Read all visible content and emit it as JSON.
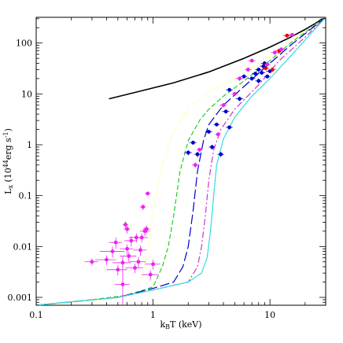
{
  "chart_data": {
    "type": "scatter",
    "title": "",
    "xlabel": "k_BT (keV)",
    "ylabel": "L_x (10^44 erg s^-1)",
    "xscale": "log",
    "yscale": "log",
    "xlim": [
      0.1,
      30
    ],
    "ylim": [
      0.0007,
      320
    ],
    "xticks": [
      {
        "value": 0.1,
        "label": "0.1"
      },
      {
        "value": 1,
        "label": "1"
      },
      {
        "value": 10,
        "label": "10"
      }
    ],
    "yticks": [
      {
        "value": 0.001,
        "label": "0.001"
      },
      {
        "value": 0.01,
        "label": "0.01"
      },
      {
        "value": 0.1,
        "label": "0.1"
      },
      {
        "value": 1,
        "label": "1"
      },
      {
        "value": 10,
        "label": "10"
      },
      {
        "value": 100,
        "label": "100"
      }
    ],
    "grid": false,
    "legend": "none",
    "curves": [
      {
        "style": "solid",
        "color": "#000000",
        "points": [
          [
            0.42,
            8.0
          ],
          [
            0.8,
            11.5
          ],
          [
            1.5,
            16.5
          ],
          [
            3,
            27
          ],
          [
            6,
            50
          ],
          [
            10,
            83
          ],
          [
            15,
            130
          ],
          [
            20,
            185
          ],
          [
            25,
            250
          ],
          [
            28,
            300
          ]
        ]
      },
      {
        "style": "dotted",
        "color": "#ffff66",
        "points": [
          [
            0.1,
            0.0007
          ],
          [
            0.2,
            0.0008
          ],
          [
            0.4,
            0.0009
          ],
          [
            0.6,
            0.0011
          ],
          [
            0.8,
            0.0025
          ],
          [
            0.9,
            0.008
          ],
          [
            1.0,
            0.05
          ],
          [
            1.2,
            0.4
          ],
          [
            1.5,
            1.8
          ],
          [
            2,
            5
          ],
          [
            3,
            11
          ],
          [
            5,
            20
          ],
          [
            8,
            40
          ],
          [
            15,
            110
          ],
          [
            30,
            320
          ]
        ]
      },
      {
        "style": "dashed",
        "color": "#22cc22",
        "points": [
          [
            0.1,
            0.0007
          ],
          [
            0.3,
            0.0009
          ],
          [
            0.6,
            0.0011
          ],
          [
            1.0,
            0.0016
          ],
          [
            1.2,
            0.004
          ],
          [
            1.35,
            0.01
          ],
          [
            1.5,
            0.04
          ],
          [
            1.7,
            0.3
          ],
          [
            2,
            1.2
          ],
          [
            2.5,
            3
          ],
          [
            3,
            5
          ],
          [
            4,
            9
          ],
          [
            6,
            18
          ],
          [
            10,
            45
          ],
          [
            15,
            100
          ],
          [
            30,
            320
          ]
        ]
      },
      {
        "style": "longdash",
        "color": "#0000cc",
        "points": [
          [
            0.1,
            0.0007
          ],
          [
            0.5,
            0.001
          ],
          [
            1.0,
            0.0015
          ],
          [
            1.5,
            0.002
          ],
          [
            1.8,
            0.004
          ],
          [
            2,
            0.01
          ],
          [
            2.2,
            0.05
          ],
          [
            2.4,
            0.3
          ],
          [
            2.7,
            1.2
          ],
          [
            3,
            2.5
          ],
          [
            4,
            6
          ],
          [
            6,
            14
          ],
          [
            10,
            40
          ],
          [
            15,
            90
          ],
          [
            30,
            320
          ]
        ]
      },
      {
        "style": "dashdot",
        "color": "#cc33cc",
        "points": [
          [
            0.1,
            0.0007
          ],
          [
            0.5,
            0.001
          ],
          [
            1.0,
            0.0014
          ],
          [
            2.0,
            0.002
          ],
          [
            2.4,
            0.004
          ],
          [
            2.6,
            0.01
          ],
          [
            2.8,
            0.04
          ],
          [
            3,
            0.2
          ],
          [
            3.3,
            0.8
          ],
          [
            3.8,
            2
          ],
          [
            5,
            5
          ],
          [
            8,
            15
          ],
          [
            12,
            45
          ],
          [
            20,
            130
          ],
          [
            30,
            320
          ]
        ]
      },
      {
        "style": "solid",
        "color": "#33dddd",
        "points": [
          [
            0.1,
            0.0007
          ],
          [
            0.5,
            0.001
          ],
          [
            1.0,
            0.0014
          ],
          [
            2.0,
            0.002
          ],
          [
            2.6,
            0.003
          ],
          [
            2.9,
            0.006
          ],
          [
            3.1,
            0.02
          ],
          [
            3.3,
            0.1
          ],
          [
            3.5,
            0.4
          ],
          [
            4,
            1.3
          ],
          [
            5,
            3.5
          ],
          [
            7,
            9
          ],
          [
            10,
            20
          ],
          [
            15,
            55
          ],
          [
            30,
            320
          ]
        ]
      }
    ],
    "points": [
      {
        "x": 0.3,
        "y": 0.005,
        "color": "#ee22ee",
        "xerr": [
          0.04,
          0.04
        ],
        "yerr": [
          0.0008,
          0.0008
        ]
      },
      {
        "x": 0.4,
        "y": 0.0055,
        "color": "#ee22ee",
        "xerr": [
          0.08,
          0.08
        ],
        "yerr": [
          0.0012,
          0.0012
        ]
      },
      {
        "x": 0.45,
        "y": 0.008,
        "color": "#ee22ee",
        "xerr": [
          0.1,
          0.12
        ],
        "yerr": [
          0.002,
          0.002
        ]
      },
      {
        "x": 0.48,
        "y": 0.012,
        "color": "#ee22ee",
        "xerr": [
          0.06,
          0.06
        ],
        "yerr": [
          0.003,
          0.003
        ]
      },
      {
        "x": 0.5,
        "y": 0.0035,
        "color": "#ee22ee",
        "xerr": [
          0.1,
          0.1
        ],
        "yerr": [
          0.0008,
          0.0008
        ]
      },
      {
        "x": 0.55,
        "y": 0.0018,
        "color": "#ee22ee",
        "xerr": [
          0.08,
          0.08
        ],
        "yerr": [
          0.0012,
          0.0045
        ]
      },
      {
        "x": 0.55,
        "y": 0.0048,
        "color": "#ee22ee",
        "xerr": [
          0.1,
          0.1
        ],
        "yerr": [
          0.001,
          0.001
        ]
      },
      {
        "x": 0.58,
        "y": 0.027,
        "color": "#ee22ee",
        "xerr": [
          0.03,
          0.03
        ],
        "yerr": [
          0.004,
          0.004
        ]
      },
      {
        "x": 0.6,
        "y": 0.022,
        "color": "#ee22ee",
        "xerr": [
          0.04,
          0.04
        ],
        "yerr": [
          0.004,
          0.004
        ]
      },
      {
        "x": 0.6,
        "y": 0.009,
        "color": "#ee22ee",
        "xerr": [
          0.08,
          0.08
        ],
        "yerr": [
          0.002,
          0.002
        ]
      },
      {
        "x": 0.62,
        "y": 0.0065,
        "color": "#ee22ee",
        "xerr": [
          0.1,
          0.1
        ],
        "yerr": [
          0.0015,
          0.0015
        ]
      },
      {
        "x": 0.65,
        "y": 0.013,
        "color": "#ee22ee",
        "xerr": [
          0.08,
          0.08
        ],
        "yerr": [
          0.003,
          0.003
        ]
      },
      {
        "x": 0.7,
        "y": 0.0038,
        "color": "#ee22ee",
        "xerr": [
          0.12,
          0.12
        ],
        "yerr": [
          0.0008,
          0.0008
        ]
      },
      {
        "x": 0.72,
        "y": 0.015,
        "color": "#ee22ee",
        "xerr": [
          0.1,
          0.1
        ],
        "yerr": [
          0.003,
          0.003
        ]
      },
      {
        "x": 0.75,
        "y": 0.005,
        "color": "#ee22ee",
        "xerr": [
          0.12,
          0.12
        ],
        "yerr": [
          0.0012,
          0.0012
        ]
      },
      {
        "x": 0.78,
        "y": 0.0085,
        "color": "#ee22ee",
        "xerr": [
          0.1,
          0.1
        ],
        "yerr": [
          0.002,
          0.002
        ]
      },
      {
        "x": 0.8,
        "y": 0.015,
        "color": "#ee22ee",
        "xerr": [
          0.1,
          0.1
        ],
        "yerr": [
          0.003,
          0.003
        ]
      },
      {
        "x": 0.82,
        "y": 0.06,
        "color": "#ee22ee",
        "xerr": [
          0.05,
          0.05
        ],
        "yerr": [
          0.008,
          0.008
        ]
      },
      {
        "x": 0.85,
        "y": 0.02,
        "color": "#ee22ee",
        "xerr": [
          0.08,
          0.08
        ],
        "yerr": [
          0.004,
          0.004
        ]
      },
      {
        "x": 0.88,
        "y": 0.022,
        "color": "#ee22ee",
        "xerr": [
          0.06,
          0.06
        ],
        "yerr": [
          0.004,
          0.004
        ]
      },
      {
        "x": 0.9,
        "y": 0.11,
        "color": "#ee22ee",
        "xerr": [
          0.05,
          0.05
        ],
        "yerr": [
          0.01,
          0.01
        ]
      },
      {
        "x": 0.95,
        "y": 0.0028,
        "color": "#ee22ee",
        "xerr": [
          0.15,
          0.15
        ],
        "yerr": [
          0.0006,
          0.0006
        ]
      },
      {
        "x": 1.0,
        "y": 0.0045,
        "color": "#ee22ee",
        "xerr": [
          0.15,
          0.15
        ],
        "yerr": [
          0.001,
          0.001
        ]
      },
      {
        "x": 2.0,
        "y": 0.7,
        "color": "#0000cc",
        "xerr": [
          0.15,
          0.15
        ],
        "yerr": [
          0.08,
          0.08
        ]
      },
      {
        "x": 2.2,
        "y": 1.1,
        "color": "#0000cc",
        "xerr": [
          0.15,
          0.15
        ],
        "yerr": [
          0.1,
          0.1
        ]
      },
      {
        "x": 2.4,
        "y": 0.65,
        "color": "#0000cc",
        "xerr": [
          0.15,
          0.15
        ],
        "yerr": [
          0.08,
          0.08
        ]
      },
      {
        "x": 2.3,
        "y": 0.4,
        "color": "#ee22ee",
        "xerr": [
          0.15,
          0.15
        ],
        "yerr": [
          0.05,
          0.05
        ]
      },
      {
        "x": 2.5,
        "y": 0.8,
        "color": "#ee22ee",
        "xerr": [
          0.15,
          0.15
        ],
        "yerr": [
          0.08,
          0.08
        ]
      },
      {
        "x": 3.0,
        "y": 1.8,
        "color": "#0000cc",
        "xerr": [
          0.2,
          0.2
        ],
        "yerr": [
          0.15,
          0.15
        ]
      },
      {
        "x": 3.2,
        "y": 0.9,
        "color": "#0000cc",
        "xerr": [
          0.2,
          0.2
        ],
        "yerr": [
          0.1,
          0.1
        ]
      },
      {
        "x": 3.5,
        "y": 2.5,
        "color": "#0000cc",
        "xerr": [
          0.2,
          0.2
        ],
        "yerr": [
          0.2,
          0.2
        ]
      },
      {
        "x": 3.6,
        "y": 1.6,
        "color": "#ee22ee",
        "xerr": [
          0.2,
          0.2
        ],
        "yerr": [
          0.15,
          0.15
        ]
      },
      {
        "x": 3.8,
        "y": 0.65,
        "color": "#0000cc",
        "xerr": [
          0.25,
          0.25
        ],
        "yerr": [
          0.08,
          0.08
        ]
      },
      {
        "x": 4.0,
        "y": 6.0,
        "color": "#ee22ee",
        "xerr": [
          0.3,
          0.3
        ],
        "yerr": [
          0.6,
          0.6
        ]
      },
      {
        "x": 4.2,
        "y": 4.5,
        "color": "#0000cc",
        "xerr": [
          0.3,
          0.3
        ],
        "yerr": [
          0.4,
          0.4
        ]
      },
      {
        "x": 4.5,
        "y": 2.2,
        "color": "#0000cc",
        "xerr": [
          0.3,
          0.3
        ],
        "yerr": [
          0.2,
          0.2
        ]
      },
      {
        "x": 4.5,
        "y": 12,
        "color": "#0000cc",
        "xerr": [
          0.3,
          0.3
        ],
        "yerr": [
          1,
          1
        ]
      },
      {
        "x": 5.0,
        "y": 10,
        "color": "#ee22ee",
        "xerr": [
          0.3,
          0.3
        ],
        "yerr": [
          1,
          1
        ]
      },
      {
        "x": 5.5,
        "y": 8,
        "color": "#0000cc",
        "xerr": [
          0.4,
          0.4
        ],
        "yerr": [
          0.8,
          0.8
        ]
      },
      {
        "x": 5.5,
        "y": 20,
        "color": "#ee22ee",
        "xerr": [
          0.4,
          0.4
        ],
        "yerr": [
          2,
          2
        ]
      },
      {
        "x": 6.0,
        "y": 22,
        "color": "#0000cc",
        "xerr": [
          0.4,
          0.4
        ],
        "yerr": [
          2,
          2
        ]
      },
      {
        "x": 6.5,
        "y": 30,
        "color": "#ee22ee",
        "xerr": [
          0.4,
          0.4
        ],
        "yerr": [
          3,
          3
        ]
      },
      {
        "x": 7.0,
        "y": 20,
        "color": "#0000cc",
        "xerr": [
          0.5,
          0.5
        ],
        "yerr": [
          2,
          2
        ]
      },
      {
        "x": 7.0,
        "y": 45,
        "color": "#ee22ee",
        "xerr": [
          0.5,
          0.5
        ],
        "yerr": [
          4,
          4
        ]
      },
      {
        "x": 7.5,
        "y": 25,
        "color": "#0000cc",
        "xerr": [
          0.5,
          0.5
        ],
        "yerr": [
          2,
          2
        ]
      },
      {
        "x": 8.0,
        "y": 18,
        "color": "#0000cc",
        "xerr": [
          0.5,
          0.5
        ],
        "yerr": [
          2,
          2
        ]
      },
      {
        "x": 8.0,
        "y": 30,
        "color": "#0000cc",
        "xerr": [
          0.5,
          0.5
        ],
        "yerr": [
          3,
          3
        ]
      },
      {
        "x": 8.5,
        "y": 26,
        "color": "#0000cc",
        "xerr": [
          0.6,
          0.6
        ],
        "yerr": [
          2,
          2
        ]
      },
      {
        "x": 8.8,
        "y": 35,
        "color": "#0000cc",
        "xerr": [
          0.6,
          0.6
        ],
        "yerr": [
          3,
          3
        ]
      },
      {
        "x": 9.0,
        "y": 40,
        "color": "#0000cc",
        "xerr": [
          0.6,
          0.6
        ],
        "yerr": [
          3,
          3
        ]
      },
      {
        "x": 9.2,
        "y": 32,
        "color": "#ee0000",
        "xerr": [
          0.6,
          0.6
        ],
        "yerr": [
          3,
          3
        ]
      },
      {
        "x": 9.5,
        "y": 22,
        "color": "#0000cc",
        "xerr": [
          0.6,
          0.6
        ],
        "yerr": [
          2,
          2
        ]
      },
      {
        "x": 9.5,
        "y": 38,
        "color": "#ee22ee",
        "xerr": [
          0.6,
          0.6
        ],
        "yerr": [
          3,
          3
        ]
      },
      {
        "x": 10.0,
        "y": 28,
        "color": "#0000cc",
        "xerr": [
          0.7,
          0.7
        ],
        "yerr": [
          2,
          2
        ]
      },
      {
        "x": 10.5,
        "y": 30,
        "color": "#ee0000",
        "xerr": [
          0.7,
          0.7
        ],
        "yerr": [
          3,
          3
        ]
      },
      {
        "x": 11.0,
        "y": 65,
        "color": "#ee22ee",
        "xerr": [
          0.8,
          0.8
        ],
        "yerr": [
          6,
          6
        ]
      },
      {
        "x": 12.0,
        "y": 70,
        "color": "#ee0000",
        "xerr": [
          0.8,
          0.8
        ],
        "yerr": [
          6,
          6
        ]
      },
      {
        "x": 12.5,
        "y": 75,
        "color": "#ee22ee",
        "xerr": [
          0.9,
          0.9
        ],
        "yerr": [
          6,
          6
        ]
      },
      {
        "x": 14.0,
        "y": 140,
        "color": "#ee0000",
        "xerr": [
          1,
          1
        ],
        "yerr": [
          12,
          12
        ]
      },
      {
        "x": 15.5,
        "y": 145,
        "color": "#ee22ee",
        "xerr": [
          1,
          1
        ],
        "yerr": [
          12,
          12
        ]
      }
    ]
  }
}
